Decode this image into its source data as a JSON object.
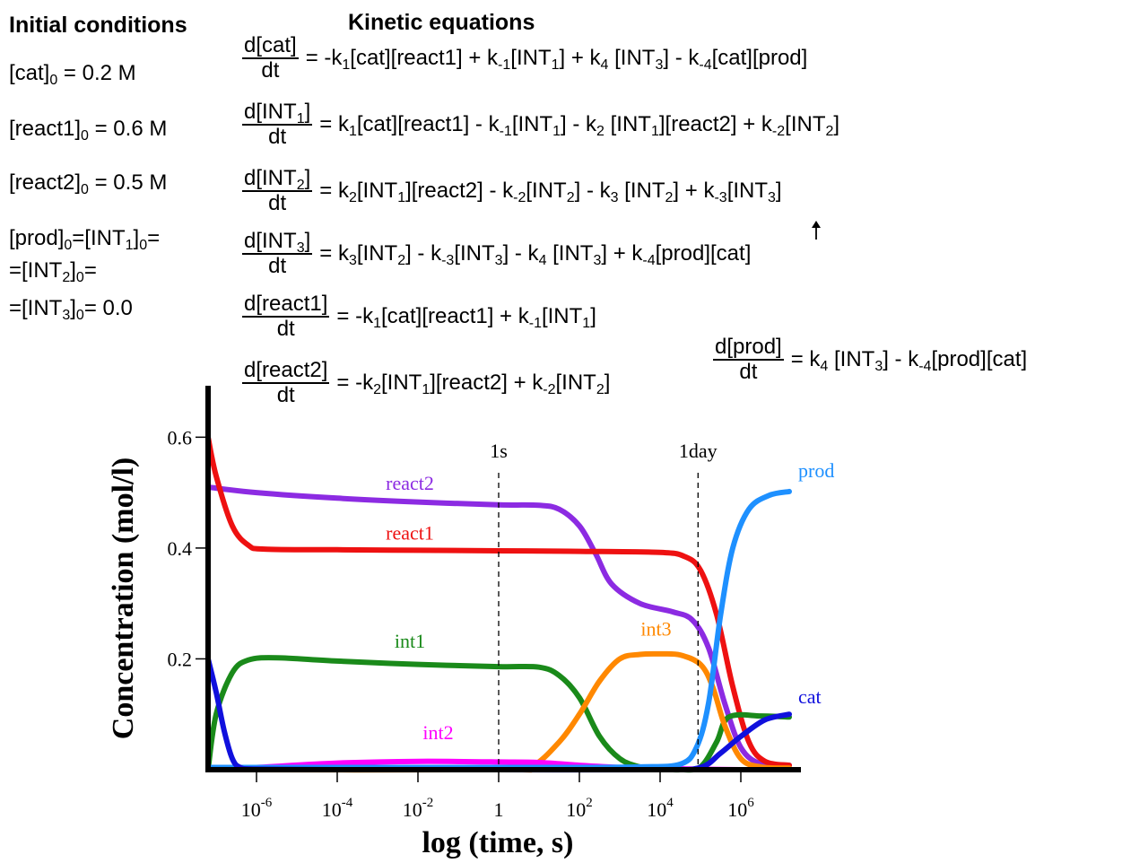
{
  "headers": {
    "initial": "Initial conditions",
    "kinetic": "Kinetic equations"
  },
  "conditions": {
    "cat": {
      "pre": "[cat]",
      "sub": "0",
      "post": " = 0.2 M"
    },
    "react1": {
      "pre": "[react1]",
      "sub": "0",
      "post": " = 0.6 M"
    },
    "react2": {
      "pre": "[react2]",
      "sub": "0",
      "post": " = 0.5 M"
    },
    "rest1": "[prod]<sub>0</sub>=[INT<sub>1</sub>]<sub>0</sub>=",
    "rest2": "=[INT<sub>2</sub>]<sub>0</sub>=",
    "rest3": "=[INT<sub>3</sub>]<sub>0</sub>= 0.0"
  },
  "equations": [
    {
      "num": "d[cat]",
      "den": "dt",
      "rhs": "= -k<sub>1</sub>[cat][react1] + k<sub>-1</sub>[INT<sub>1</sub>] + k<sub>4</sub> [INT<sub>3</sub>] - k<sub>-4</sub>[cat][prod]"
    },
    {
      "num": "d[INT<sub>1</sub>]",
      "den": "dt",
      "rhs": "= k<sub>1</sub>[cat][react1] - k<sub>-1</sub>[INT<sub>1</sub>] - k<sub>2</sub> [INT<sub>1</sub>][react2] + k<sub>-2</sub>[INT<sub>2</sub>]"
    },
    {
      "num": "d[INT<sub>2</sub>]",
      "den": "dt",
      "rhs": "= k<sub>2</sub>[INT<sub>1</sub>][react2] - k<sub>-2</sub>[INT<sub>2</sub>] - k<sub>3</sub> [INT<sub>2</sub>] + k<sub>-3</sub>[INT<sub>3</sub>]"
    },
    {
      "num": "d[INT<sub>3</sub>]",
      "den": "dt",
      "rhs": "= k<sub>3</sub>[INT<sub>2</sub>] - k<sub>-3</sub>[INT<sub>3</sub>] - k<sub>4</sub> [INT<sub>3</sub>] + k<sub>-4</sub>[prod][cat]"
    },
    {
      "num": "d[react1]",
      "den": "dt",
      "rhs": "= -k<sub>1</sub>[cat][react1] + k<sub>-1</sub>[INT<sub>1</sub>]"
    },
    {
      "num": "d[react2]",
      "den": "dt",
      "rhs": "= -k<sub>2</sub>[INT<sub>1</sub>][react2] + k<sub>-2</sub>[INT<sub>2</sub>]"
    },
    {
      "num": "d[prod]",
      "den": "dt",
      "rhs": "= k<sub>4</sub> [INT<sub>3</sub>] - k<sub>-4</sub>[prod][cat]"
    }
  ],
  "chart_data": {
    "type": "line",
    "xlabel": "log (time, s)",
    "ylabel": "Concentration (mol/l)",
    "xscale": "log",
    "xlim": [
      -7.2,
      7.2
    ],
    "ylim": [
      0,
      0.62
    ],
    "yticks": [
      0.2,
      0.4,
      0.6
    ],
    "ytick_labels": [
      "0.2",
      "0.4",
      "0.6"
    ],
    "xticks": [
      -6,
      -4,
      -2,
      0,
      2,
      4,
      6
    ],
    "xtick_labels": [
      {
        "base": "10",
        "exp": "-6"
      },
      {
        "base": "10",
        "exp": "-4"
      },
      {
        "base": "10",
        "exp": "-2"
      },
      {
        "base": "1",
        "exp": ""
      },
      {
        "base": "10",
        "exp": "2"
      },
      {
        "base": "10",
        "exp": "4"
      },
      {
        "base": "10",
        "exp": "6"
      }
    ],
    "markers": [
      {
        "label": "1s",
        "x": 0
      },
      {
        "label": "1day",
        "x": 4.94
      }
    ],
    "grid": false,
    "series": [
      {
        "name": "react2",
        "color": "#8c2be2",
        "label_x": -2.2,
        "label_y": 0.505,
        "points": [
          [
            -7.2,
            0.51
          ],
          [
            -6,
            0.5
          ],
          [
            -4,
            0.49
          ],
          [
            -2,
            0.483
          ],
          [
            0,
            0.478
          ],
          [
            1,
            0.477
          ],
          [
            1.5,
            0.47
          ],
          [
            2,
            0.44
          ],
          [
            2.4,
            0.39
          ],
          [
            2.8,
            0.335
          ],
          [
            3.5,
            0.3
          ],
          [
            4.3,
            0.285
          ],
          [
            4.8,
            0.27
          ],
          [
            5.2,
            0.22
          ],
          [
            5.6,
            0.12
          ],
          [
            6,
            0.04
          ],
          [
            6.5,
            0.01
          ],
          [
            7.2,
            0.008
          ]
        ]
      },
      {
        "name": "react1",
        "color": "#ee1111",
        "label_x": -2.2,
        "label_y": 0.415,
        "points": [
          [
            -7.2,
            0.6
          ],
          [
            -7,
            0.53
          ],
          [
            -6.6,
            0.44
          ],
          [
            -6.2,
            0.405
          ],
          [
            -5.8,
            0.398
          ],
          [
            -4,
            0.397
          ],
          [
            -2,
            0.396
          ],
          [
            0,
            0.395
          ],
          [
            2,
            0.394
          ],
          [
            4,
            0.392
          ],
          [
            4.6,
            0.385
          ],
          [
            5,
            0.36
          ],
          [
            5.4,
            0.28
          ],
          [
            5.8,
            0.15
          ],
          [
            6.2,
            0.05
          ],
          [
            6.6,
            0.015
          ],
          [
            7.2,
            0.008
          ]
        ]
      },
      {
        "name": "int1",
        "color": "#1a8a1a",
        "label_x": -2.2,
        "label_y": 0.22,
        "points": [
          [
            -7.2,
            0
          ],
          [
            -7,
            0.1
          ],
          [
            -6.6,
            0.175
          ],
          [
            -6.2,
            0.198
          ],
          [
            -5.5,
            0.202
          ],
          [
            -4,
            0.196
          ],
          [
            -2,
            0.19
          ],
          [
            0,
            0.186
          ],
          [
            1,
            0.185
          ],
          [
            1.5,
            0.17
          ],
          [
            2,
            0.13
          ],
          [
            2.5,
            0.06
          ],
          [
            3,
            0.02
          ],
          [
            3.5,
            0.005
          ],
          [
            4,
            0.001
          ],
          [
            4.5,
            0.0
          ],
          [
            5,
            0.005
          ],
          [
            5.4,
            0.05
          ],
          [
            5.7,
            0.095
          ],
          [
            6.5,
            0.097
          ],
          [
            7.2,
            0.095
          ]
        ]
      },
      {
        "name": "int3",
        "color": "#ff8800",
        "label_x": 3.9,
        "label_y": 0.242,
        "points": [
          [
            -7.2,
            0
          ],
          [
            0,
            0
          ],
          [
            0.8,
            0.005
          ],
          [
            1.5,
            0.05
          ],
          [
            2,
            0.1
          ],
          [
            2.5,
            0.16
          ],
          [
            3,
            0.2
          ],
          [
            3.5,
            0.208
          ],
          [
            4,
            0.209
          ],
          [
            4.5,
            0.207
          ],
          [
            5,
            0.19
          ],
          [
            5.3,
            0.15
          ],
          [
            5.6,
            0.08
          ],
          [
            6,
            0.02
          ],
          [
            6.5,
            0.005
          ],
          [
            7.2,
            0.003
          ]
        ]
      },
      {
        "name": "int2",
        "color": "#ff00ff",
        "label_x": -1.5,
        "label_y": 0.055,
        "points": [
          [
            -7.2,
            0.0
          ],
          [
            -6,
            0.004
          ],
          [
            -4,
            0.012
          ],
          [
            -2,
            0.015
          ],
          [
            0,
            0.014
          ],
          [
            1,
            0.013
          ],
          [
            2,
            0.008
          ],
          [
            3,
            0.004
          ],
          [
            4,
            0.002
          ],
          [
            5,
            0.001
          ],
          [
            6,
            0.0
          ],
          [
            7.2,
            0.0
          ]
        ]
      },
      {
        "name": "prod",
        "color": "#1e90ff",
        "label_x": 7.8,
        "label_y": 0.528,
        "points": [
          [
            -7.2,
            0.004
          ],
          [
            -4,
            0.004
          ],
          [
            0,
            0.004
          ],
          [
            2,
            0.004
          ],
          [
            3.5,
            0.005
          ],
          [
            4.5,
            0.01
          ],
          [
            4.9,
            0.04
          ],
          [
            5.2,
            0.12
          ],
          [
            5.5,
            0.28
          ],
          [
            5.8,
            0.4
          ],
          [
            6.2,
            0.47
          ],
          [
            6.7,
            0.495
          ],
          [
            7.2,
            0.502
          ]
        ]
      },
      {
        "name": "cat",
        "color": "#1010dd",
        "label_x": 7.8,
        "label_y": 0.12,
        "points": [
          [
            -7.2,
            0.2
          ],
          [
            -7,
            0.14
          ],
          [
            -6.8,
            0.07
          ],
          [
            -6.6,
            0.02
          ],
          [
            -6.4,
            0.004
          ],
          [
            -6,
            0.001
          ],
          [
            -4,
            0.0
          ],
          [
            0,
            0.0
          ],
          [
            4,
            0.0
          ],
          [
            5,
            0.004
          ],
          [
            5.5,
            0.03
          ],
          [
            6,
            0.06
          ],
          [
            6.6,
            0.09
          ],
          [
            7.2,
            0.1
          ]
        ]
      }
    ]
  }
}
